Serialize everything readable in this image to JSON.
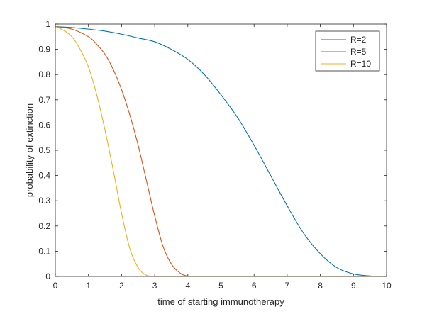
{
  "chart_data": {
    "type": "line",
    "title": "",
    "xlabel": "time of starting immunotherapy",
    "ylabel": "probability of extinction",
    "xlim": [
      0,
      10
    ],
    "ylim": [
      0,
      1
    ],
    "xticks": [
      "0",
      "1",
      "2",
      "3",
      "4",
      "5",
      "6",
      "7",
      "8",
      "9",
      "10"
    ],
    "yticks": [
      "0",
      "0.1",
      "0.2",
      "0.3",
      "0.4",
      "0.5",
      "0.6",
      "0.7",
      "0.8",
      "0.9",
      "1"
    ],
    "grid": false,
    "legend_position": "top-right",
    "series": [
      {
        "name": "R=2",
        "color": "#0072BD",
        "x": [
          0,
          0.5,
          1,
          1.5,
          2,
          2.5,
          3,
          3.5,
          4,
          4.5,
          5,
          5.5,
          6,
          6.5,
          7,
          7.5,
          8,
          8.5,
          9,
          9.5,
          10
        ],
        "y": [
          0.99,
          0.986,
          0.98,
          0.972,
          0.96,
          0.945,
          0.93,
          0.9,
          0.86,
          0.8,
          0.72,
          0.63,
          0.52,
          0.4,
          0.28,
          0.17,
          0.09,
          0.035,
          0.01,
          0.002,
          0
        ]
      },
      {
        "name": "R=5",
        "color": "#D95319",
        "x": [
          0,
          0.5,
          1,
          1.25,
          1.5,
          1.75,
          2,
          2.25,
          2.5,
          2.75,
          3,
          3.25,
          3.5,
          3.75,
          4,
          4.5,
          5,
          10
        ],
        "y": [
          0.99,
          0.98,
          0.95,
          0.92,
          0.88,
          0.82,
          0.74,
          0.64,
          0.52,
          0.38,
          0.24,
          0.12,
          0.05,
          0.015,
          0.002,
          0,
          0,
          0
        ]
      },
      {
        "name": "R=10",
        "color": "#EDB120",
        "x": [
          0,
          0.25,
          0.5,
          0.75,
          1,
          1.25,
          1.5,
          1.75,
          2,
          2.25,
          2.5,
          2.75,
          3,
          3.5,
          10
        ],
        "y": [
          0.99,
          0.975,
          0.95,
          0.9,
          0.83,
          0.72,
          0.58,
          0.42,
          0.25,
          0.11,
          0.035,
          0.005,
          0.0005,
          0,
          0
        ]
      }
    ]
  }
}
